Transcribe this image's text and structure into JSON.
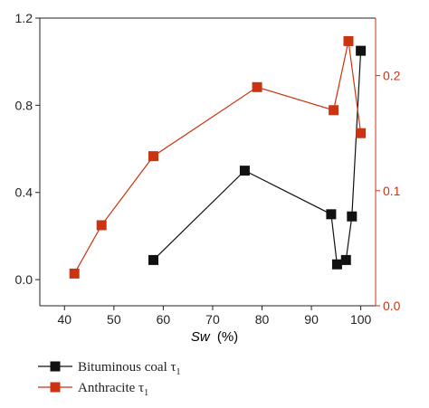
{
  "chart_data": {
    "type": "line",
    "xlabel_var": "Sw",
    "xlabel_unit": "(%)",
    "xlim": [
      35,
      103
    ],
    "x_ticks": [
      "40",
      "50",
      "60",
      "70",
      "80",
      "90",
      "100"
    ],
    "y_left": {
      "ylim": [
        -0.12,
        1.2
      ],
      "ticks": [
        "0.0",
        "0.4",
        "0.8",
        "1.2"
      ],
      "color": "#222222"
    },
    "y_right": {
      "ylim": [
        0,
        0.25
      ],
      "ticks": [
        "0.0",
        "0.1",
        "0.2"
      ],
      "color": "#cc3311"
    },
    "series": [
      {
        "name": "Bituminous coal τ",
        "name_base": "Bituminous coal τ",
        "name_sub": "1",
        "axis": "left",
        "color": "#111111",
        "x": [
          58,
          76.5,
          94,
          95.2,
          97,
          98.2,
          100
        ],
        "y": [
          0.09,
          0.5,
          0.3,
          0.07,
          0.09,
          0.29,
          1.05
        ]
      },
      {
        "name": "Anthracite τ",
        "name_base": "Anthracite τ",
        "name_sub": "1",
        "axis": "right",
        "color": "#cc3311",
        "x": [
          42,
          47.5,
          58,
          79,
          94.5,
          97.5,
          100
        ],
        "y": [
          0.028,
          0.07,
          0.13,
          0.19,
          0.17,
          0.23,
          0.15
        ]
      }
    ],
    "legend_position": "bottom-left",
    "grid": false
  }
}
